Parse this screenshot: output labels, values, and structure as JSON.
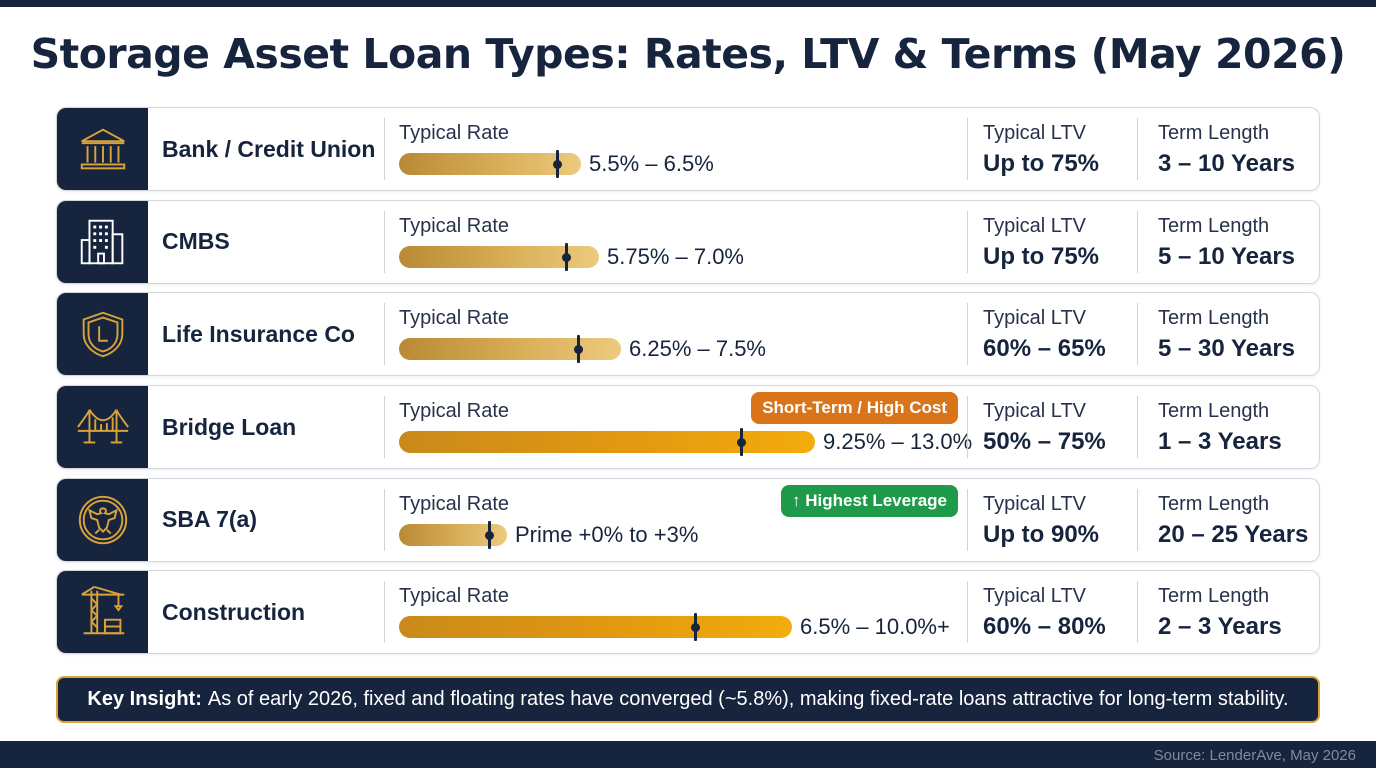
{
  "title": "Storage Asset Loan Types: Rates, LTV & Terms (May 2026)",
  "chart_data": {
    "type": "table",
    "rows": [
      {
        "name": "Bank / Credit Union",
        "icon": "bank-icon",
        "rate_label": "Typical Rate",
        "rate_text": "5.5% – 6.5%",
        "rate_fill": 0.32,
        "marker": 0.86,
        "ltv_label": "Typical LTV",
        "ltv": "Up to 75%",
        "term_label": "Term Length",
        "term": "3 – 10 Years",
        "badge": null
      },
      {
        "name": "CMBS",
        "icon": "office-building-icon",
        "rate_label": "Typical Rate",
        "rate_text": "5.75% – 7.0%",
        "rate_fill": 0.35,
        "marker": 0.83,
        "ltv_label": "Typical LTV",
        "ltv": "Up to 75%",
        "term_label": "Term Length",
        "term": "5 – 10 Years",
        "badge": null
      },
      {
        "name": "Life Insurance Co",
        "icon": "shield-icon",
        "rate_label": "Typical Rate",
        "rate_text": "6.25% – 7.5%",
        "rate_fill": 0.39,
        "marker": 0.8,
        "ltv_label": "Typical LTV",
        "ltv": "60% – 65%",
        "term_label": "Term Length",
        "term": "5 – 30 Years",
        "badge": null
      },
      {
        "name": "Bridge Loan",
        "icon": "bridge-icon",
        "rate_label": "Typical Rate",
        "rate_text": "9.25% – 13.0%",
        "rate_fill": 0.73,
        "marker": 0.82,
        "ltv_label": "Typical LTV",
        "ltv": "50% – 75%",
        "term_label": "Term Length",
        "term": "1 – 3 Years",
        "badge": {
          "text": "Short-Term / High Cost",
          "color": "#d9741b"
        }
      },
      {
        "name": "SBA 7(a)",
        "icon": "eagle-seal-icon",
        "rate_label": "Typical Rate",
        "rate_text": "Prime +0% to +3%",
        "rate_fill": 0.19,
        "marker": 0.82,
        "ltv_label": "Typical LTV",
        "ltv": "Up to 90%",
        "term_label": "Term Length",
        "term": "20 – 25 Years",
        "badge": {
          "text": "↑ Highest Leverage",
          "color": "#1f9a4b"
        }
      },
      {
        "name": "Construction",
        "icon": "crane-icon",
        "rate_label": "Typical Rate",
        "rate_text": "6.5% – 10.0%+",
        "rate_fill": 0.69,
        "marker": 0.75,
        "ltv_label": "Typical LTV",
        "ltv": "60% – 80%",
        "term_label": "Term Length",
        "term": "2 – 3 Years",
        "badge": null
      }
    ]
  },
  "insight": {
    "label": "Key Insight:",
    "text": "As of early 2026, fixed and floating rates have converged (~5.8%), making fixed-rate loans attractive for long-term stability."
  },
  "source": "Source: LenderAve, May 2026",
  "colors": {
    "navy": "#16243d",
    "gold_light": "#e7c16f",
    "gold_dark": "#b8862a",
    "orange": "#f0a000",
    "badge_orange": "#d9741b",
    "badge_green": "#1f9a4b"
  }
}
